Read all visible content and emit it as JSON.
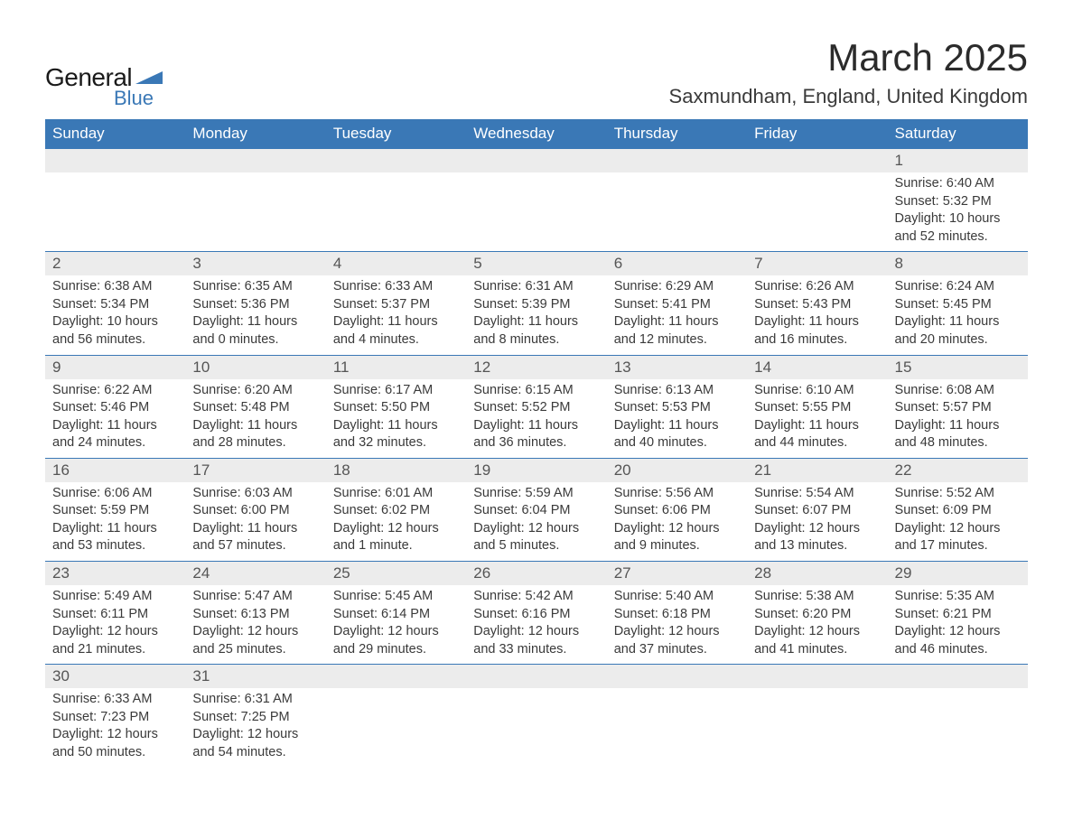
{
  "logo": {
    "text_top": "General",
    "text_bottom": "Blue",
    "accent_color": "#3a78b6",
    "text_color": "#1a1a1a"
  },
  "header": {
    "month_title": "March 2025",
    "location": "Saxmundham, England, United Kingdom"
  },
  "style": {
    "header_bg": "#3a78b6",
    "header_text": "#ffffff",
    "daynum_bg": "#ececec",
    "cell_bg": "#ffffff",
    "border_color": "#3a78b6",
    "body_text": "#3a3a3a",
    "font": "Arial",
    "th_fontsize": 17,
    "daynum_fontsize": 17,
    "info_fontsize": 14.5
  },
  "day_headers": [
    "Sunday",
    "Monday",
    "Tuesday",
    "Wednesday",
    "Thursday",
    "Friday",
    "Saturday"
  ],
  "weeks": [
    [
      {
        "day": "",
        "sunrise": "",
        "sunset": "",
        "daylight": ""
      },
      {
        "day": "",
        "sunrise": "",
        "sunset": "",
        "daylight": ""
      },
      {
        "day": "",
        "sunrise": "",
        "sunset": "",
        "daylight": ""
      },
      {
        "day": "",
        "sunrise": "",
        "sunset": "",
        "daylight": ""
      },
      {
        "day": "",
        "sunrise": "",
        "sunset": "",
        "daylight": ""
      },
      {
        "day": "",
        "sunrise": "",
        "sunset": "",
        "daylight": ""
      },
      {
        "day": "1",
        "sunrise": "Sunrise: 6:40 AM",
        "sunset": "Sunset: 5:32 PM",
        "daylight": "Daylight: 10 hours and 52 minutes."
      }
    ],
    [
      {
        "day": "2",
        "sunrise": "Sunrise: 6:38 AM",
        "sunset": "Sunset: 5:34 PM",
        "daylight": "Daylight: 10 hours and 56 minutes."
      },
      {
        "day": "3",
        "sunrise": "Sunrise: 6:35 AM",
        "sunset": "Sunset: 5:36 PM",
        "daylight": "Daylight: 11 hours and 0 minutes."
      },
      {
        "day": "4",
        "sunrise": "Sunrise: 6:33 AM",
        "sunset": "Sunset: 5:37 PM",
        "daylight": "Daylight: 11 hours and 4 minutes."
      },
      {
        "day": "5",
        "sunrise": "Sunrise: 6:31 AM",
        "sunset": "Sunset: 5:39 PM",
        "daylight": "Daylight: 11 hours and 8 minutes."
      },
      {
        "day": "6",
        "sunrise": "Sunrise: 6:29 AM",
        "sunset": "Sunset: 5:41 PM",
        "daylight": "Daylight: 11 hours and 12 minutes."
      },
      {
        "day": "7",
        "sunrise": "Sunrise: 6:26 AM",
        "sunset": "Sunset: 5:43 PM",
        "daylight": "Daylight: 11 hours and 16 minutes."
      },
      {
        "day": "8",
        "sunrise": "Sunrise: 6:24 AM",
        "sunset": "Sunset: 5:45 PM",
        "daylight": "Daylight: 11 hours and 20 minutes."
      }
    ],
    [
      {
        "day": "9",
        "sunrise": "Sunrise: 6:22 AM",
        "sunset": "Sunset: 5:46 PM",
        "daylight": "Daylight: 11 hours and 24 minutes."
      },
      {
        "day": "10",
        "sunrise": "Sunrise: 6:20 AM",
        "sunset": "Sunset: 5:48 PM",
        "daylight": "Daylight: 11 hours and 28 minutes."
      },
      {
        "day": "11",
        "sunrise": "Sunrise: 6:17 AM",
        "sunset": "Sunset: 5:50 PM",
        "daylight": "Daylight: 11 hours and 32 minutes."
      },
      {
        "day": "12",
        "sunrise": "Sunrise: 6:15 AM",
        "sunset": "Sunset: 5:52 PM",
        "daylight": "Daylight: 11 hours and 36 minutes."
      },
      {
        "day": "13",
        "sunrise": "Sunrise: 6:13 AM",
        "sunset": "Sunset: 5:53 PM",
        "daylight": "Daylight: 11 hours and 40 minutes."
      },
      {
        "day": "14",
        "sunrise": "Sunrise: 6:10 AM",
        "sunset": "Sunset: 5:55 PM",
        "daylight": "Daylight: 11 hours and 44 minutes."
      },
      {
        "day": "15",
        "sunrise": "Sunrise: 6:08 AM",
        "sunset": "Sunset: 5:57 PM",
        "daylight": "Daylight: 11 hours and 48 minutes."
      }
    ],
    [
      {
        "day": "16",
        "sunrise": "Sunrise: 6:06 AM",
        "sunset": "Sunset: 5:59 PM",
        "daylight": "Daylight: 11 hours and 53 minutes."
      },
      {
        "day": "17",
        "sunrise": "Sunrise: 6:03 AM",
        "sunset": "Sunset: 6:00 PM",
        "daylight": "Daylight: 11 hours and 57 minutes."
      },
      {
        "day": "18",
        "sunrise": "Sunrise: 6:01 AM",
        "sunset": "Sunset: 6:02 PM",
        "daylight": "Daylight: 12 hours and 1 minute."
      },
      {
        "day": "19",
        "sunrise": "Sunrise: 5:59 AM",
        "sunset": "Sunset: 6:04 PM",
        "daylight": "Daylight: 12 hours and 5 minutes."
      },
      {
        "day": "20",
        "sunrise": "Sunrise: 5:56 AM",
        "sunset": "Sunset: 6:06 PM",
        "daylight": "Daylight: 12 hours and 9 minutes."
      },
      {
        "day": "21",
        "sunrise": "Sunrise: 5:54 AM",
        "sunset": "Sunset: 6:07 PM",
        "daylight": "Daylight: 12 hours and 13 minutes."
      },
      {
        "day": "22",
        "sunrise": "Sunrise: 5:52 AM",
        "sunset": "Sunset: 6:09 PM",
        "daylight": "Daylight: 12 hours and 17 minutes."
      }
    ],
    [
      {
        "day": "23",
        "sunrise": "Sunrise: 5:49 AM",
        "sunset": "Sunset: 6:11 PM",
        "daylight": "Daylight: 12 hours and 21 minutes."
      },
      {
        "day": "24",
        "sunrise": "Sunrise: 5:47 AM",
        "sunset": "Sunset: 6:13 PM",
        "daylight": "Daylight: 12 hours and 25 minutes."
      },
      {
        "day": "25",
        "sunrise": "Sunrise: 5:45 AM",
        "sunset": "Sunset: 6:14 PM",
        "daylight": "Daylight: 12 hours and 29 minutes."
      },
      {
        "day": "26",
        "sunrise": "Sunrise: 5:42 AM",
        "sunset": "Sunset: 6:16 PM",
        "daylight": "Daylight: 12 hours and 33 minutes."
      },
      {
        "day": "27",
        "sunrise": "Sunrise: 5:40 AM",
        "sunset": "Sunset: 6:18 PM",
        "daylight": "Daylight: 12 hours and 37 minutes."
      },
      {
        "day": "28",
        "sunrise": "Sunrise: 5:38 AM",
        "sunset": "Sunset: 6:20 PM",
        "daylight": "Daylight: 12 hours and 41 minutes."
      },
      {
        "day": "29",
        "sunrise": "Sunrise: 5:35 AM",
        "sunset": "Sunset: 6:21 PM",
        "daylight": "Daylight: 12 hours and 46 minutes."
      }
    ],
    [
      {
        "day": "30",
        "sunrise": "Sunrise: 6:33 AM",
        "sunset": "Sunset: 7:23 PM",
        "daylight": "Daylight: 12 hours and 50 minutes."
      },
      {
        "day": "31",
        "sunrise": "Sunrise: 6:31 AM",
        "sunset": "Sunset: 7:25 PM",
        "daylight": "Daylight: 12 hours and 54 minutes."
      },
      {
        "day": "",
        "sunrise": "",
        "sunset": "",
        "daylight": ""
      },
      {
        "day": "",
        "sunrise": "",
        "sunset": "",
        "daylight": ""
      },
      {
        "day": "",
        "sunrise": "",
        "sunset": "",
        "daylight": ""
      },
      {
        "day": "",
        "sunrise": "",
        "sunset": "",
        "daylight": ""
      },
      {
        "day": "",
        "sunrise": "",
        "sunset": "",
        "daylight": ""
      }
    ]
  ]
}
